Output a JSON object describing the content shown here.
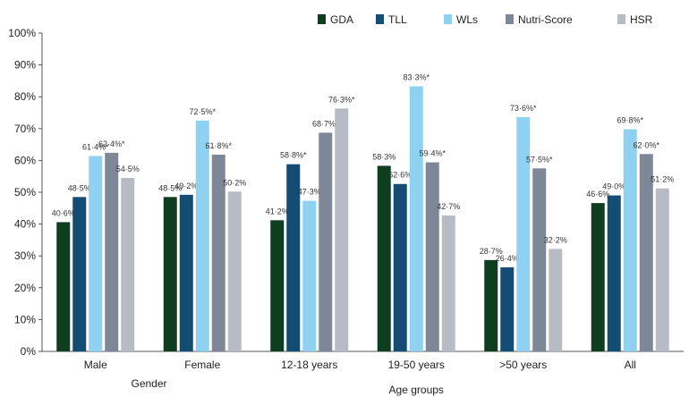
{
  "chart_data": {
    "type": "bar",
    "categories": [
      "Male",
      "Female",
      "12-18 years",
      "19-50 years",
      ">50 years",
      "All"
    ],
    "group_labels": [
      "Gender",
      "Age groups"
    ],
    "series": [
      {
        "name": "GDA",
        "color": "#0f3d1f",
        "values": [
          40.6,
          48.5,
          41.2,
          58.3,
          28.7,
          46.6
        ],
        "labels": [
          "40·6%",
          "48·5%",
          "41·2%",
          "58·3%",
          "28·7%",
          "46·6%"
        ]
      },
      {
        "name": "TLL",
        "color": "#134d73",
        "values": [
          48.5,
          49.2,
          58.8,
          52.6,
          26.4,
          49.0
        ],
        "labels": [
          "48·5%",
          "49·2%",
          "58·8%*",
          "52·6%",
          "26·4%",
          "49·0%"
        ]
      },
      {
        "name": "WLs",
        "color": "#8fd1f0",
        "values": [
          61.4,
          72.5,
          47.3,
          83.3,
          73.6,
          69.8
        ],
        "labels": [
          "61·4%*",
          "72·5%*",
          "47·3%",
          "83·3%*",
          "73·6%*",
          "69·8%*"
        ]
      },
      {
        "name": "Nutri-Score",
        "color": "#7e8797",
        "values": [
          62.4,
          61.8,
          68.7,
          59.4,
          57.5,
          62.0
        ],
        "labels": [
          "62·4%*",
          "61·8%*",
          "68·7%*",
          "59·4%*",
          "57·5%*",
          "62·0%*"
        ]
      },
      {
        "name": "HSR",
        "color": "#b7bcc4",
        "values": [
          54.5,
          50.2,
          76.3,
          42.7,
          32.2,
          51.2
        ],
        "labels": [
          "54·5%",
          "50·2%",
          "76·3%*",
          "42·7%",
          "32·2%",
          "51·2%"
        ]
      }
    ],
    "ylim": [
      0,
      100
    ],
    "yticks": [
      "0%",
      "10%",
      "20%",
      "30%",
      "40%",
      "50%",
      "60%",
      "70%",
      "80%",
      "90%",
      "100%"
    ],
    "grid": false,
    "legend": "top"
  }
}
